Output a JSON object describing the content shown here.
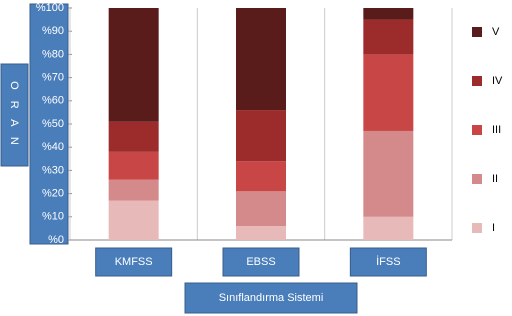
{
  "chart_data": {
    "type": "stacked_bar",
    "x_label": "Sınıflandırma Sistemi",
    "y_label": "O R A N",
    "categories": [
      "KMFSS",
      "EBSS",
      "İFSS"
    ],
    "series": [
      {
        "name": "I",
        "color": "#e8b9b9",
        "values": [
          17,
          6,
          10
        ]
      },
      {
        "name": "II",
        "color": "#d48a8a",
        "values": [
          9,
          15,
          37
        ]
      },
      {
        "name": "III",
        "color": "#c94646",
        "values": [
          12,
          13,
          33
        ]
      },
      {
        "name": "IV",
        "color": "#9c2c2c",
        "values": [
          13,
          22,
          15
        ]
      },
      {
        "name": "V",
        "color": "#5a1b1b",
        "values": [
          49,
          44,
          5
        ]
      }
    ],
    "ylim": [
      0,
      100
    ],
    "yticks": [
      {
        "value": 0,
        "label": "%0"
      },
      {
        "value": 10,
        "label": "%10"
      },
      {
        "value": 20,
        "label": "%20"
      },
      {
        "value": 30,
        "label": "%30"
      },
      {
        "value": 40,
        "label": "%40"
      },
      {
        "value": 50,
        "label": "%50"
      },
      {
        "value": 60,
        "label": "%60"
      },
      {
        "value": 70,
        "label": "%70"
      },
      {
        "value": 80,
        "label": "%80"
      },
      {
        "value": 90,
        "label": "%90"
      },
      {
        "value": 100,
        "label": "%100"
      }
    ],
    "legend": "right"
  }
}
